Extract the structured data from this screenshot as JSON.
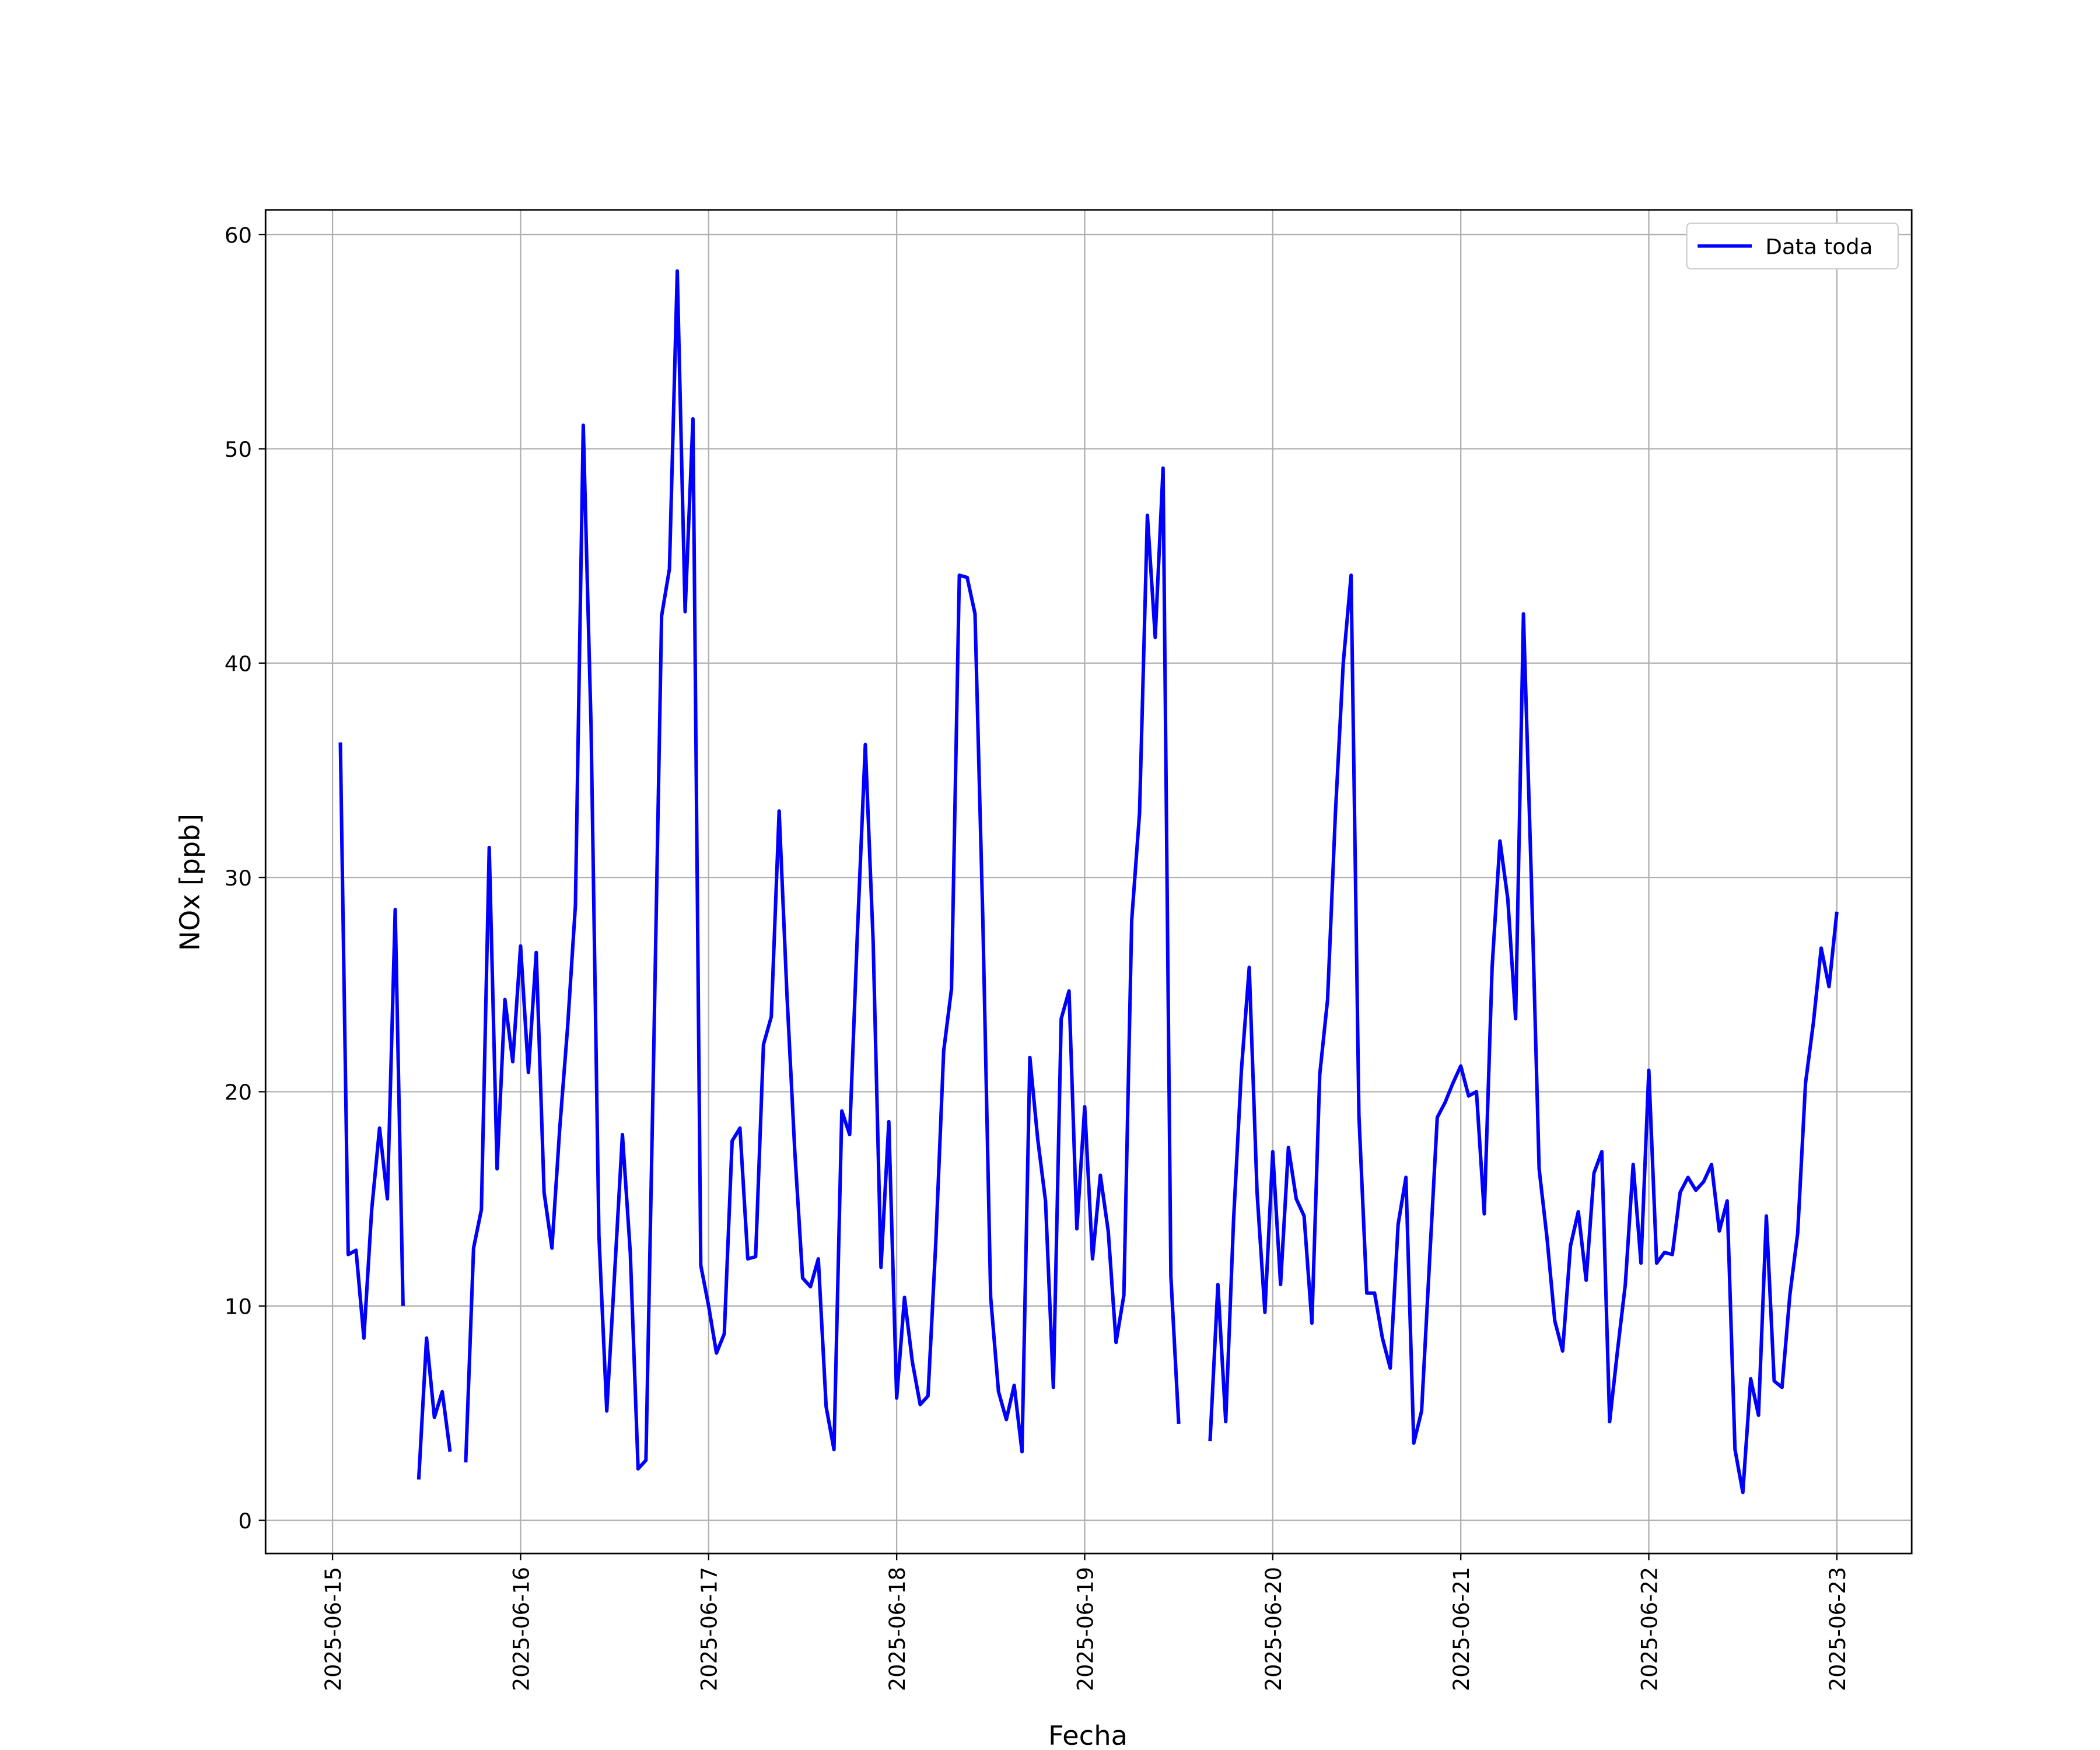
{
  "chart_data": {
    "type": "line",
    "xlabel": "Fecha",
    "ylabel": "NOx [ppb]",
    "x": [
      "2025-06-15 01:00",
      "2025-06-15 02:00",
      "2025-06-15 03:00",
      "2025-06-15 04:00",
      "2025-06-15 05:00",
      "2025-06-15 06:00",
      "2025-06-15 07:00",
      "2025-06-15 08:00",
      "2025-06-15 09:00",
      "2025-06-15 10:00",
      "2025-06-15 11:00",
      "2025-06-15 12:00",
      "2025-06-15 13:00",
      "2025-06-15 14:00",
      "2025-06-15 15:00",
      "2025-06-15 16:00",
      "2025-06-15 17:00",
      "2025-06-15 18:00",
      "2025-06-15 19:00",
      "2025-06-15 20:00",
      "2025-06-15 21:00",
      "2025-06-15 22:00",
      "2025-06-15 23:00",
      "2025-06-16 00:00",
      "2025-06-16 01:00",
      "2025-06-16 02:00",
      "2025-06-16 03:00",
      "2025-06-16 04:00",
      "2025-06-16 05:00",
      "2025-06-16 06:00",
      "2025-06-16 07:00",
      "2025-06-16 08:00",
      "2025-06-16 09:00",
      "2025-06-16 10:00",
      "2025-06-16 11:00",
      "2025-06-16 12:00",
      "2025-06-16 13:00",
      "2025-06-16 14:00",
      "2025-06-16 15:00",
      "2025-06-16 16:00",
      "2025-06-16 17:00",
      "2025-06-16 18:00",
      "2025-06-16 19:00",
      "2025-06-16 20:00",
      "2025-06-16 21:00",
      "2025-06-16 22:00",
      "2025-06-16 23:00",
      "2025-06-17 00:00",
      "2025-06-17 01:00",
      "2025-06-17 02:00",
      "2025-06-17 03:00",
      "2025-06-17 04:00",
      "2025-06-17 05:00",
      "2025-06-17 06:00",
      "2025-06-17 07:00",
      "2025-06-17 08:00",
      "2025-06-17 09:00",
      "2025-06-17 10:00",
      "2025-06-17 11:00",
      "2025-06-17 12:00",
      "2025-06-17 13:00",
      "2025-06-17 14:00",
      "2025-06-17 15:00",
      "2025-06-17 16:00",
      "2025-06-17 17:00",
      "2025-06-17 18:00",
      "2025-06-17 19:00",
      "2025-06-17 20:00",
      "2025-06-17 21:00",
      "2025-06-17 22:00",
      "2025-06-17 23:00",
      "2025-06-18 00:00",
      "2025-06-18 01:00",
      "2025-06-18 02:00",
      "2025-06-18 03:00",
      "2025-06-18 04:00",
      "2025-06-18 05:00",
      "2025-06-18 06:00",
      "2025-06-18 07:00",
      "2025-06-18 08:00",
      "2025-06-18 09:00",
      "2025-06-18 10:00",
      "2025-06-18 11:00",
      "2025-06-18 12:00",
      "2025-06-18 13:00",
      "2025-06-18 14:00",
      "2025-06-18 15:00",
      "2025-06-18 16:00",
      "2025-06-18 17:00",
      "2025-06-18 18:00",
      "2025-06-18 19:00",
      "2025-06-18 20:00",
      "2025-06-18 21:00",
      "2025-06-18 22:00",
      "2025-06-18 23:00",
      "2025-06-19 00:00",
      "2025-06-19 01:00",
      "2025-06-19 02:00",
      "2025-06-19 03:00",
      "2025-06-19 04:00",
      "2025-06-19 05:00",
      "2025-06-19 06:00",
      "2025-06-19 07:00",
      "2025-06-19 08:00",
      "2025-06-19 09:00",
      "2025-06-19 10:00",
      "2025-06-19 11:00",
      "2025-06-19 12:00",
      "2025-06-19 13:00",
      "2025-06-19 14:00",
      "2025-06-19 15:00",
      "2025-06-19 16:00",
      "2025-06-19 17:00",
      "2025-06-19 18:00",
      "2025-06-19 19:00",
      "2025-06-19 20:00",
      "2025-06-19 21:00",
      "2025-06-19 22:00",
      "2025-06-19 23:00",
      "2025-06-20 00:00",
      "2025-06-20 01:00",
      "2025-06-20 02:00",
      "2025-06-20 03:00",
      "2025-06-20 04:00",
      "2025-06-20 05:00",
      "2025-06-20 06:00",
      "2025-06-20 07:00",
      "2025-06-20 08:00",
      "2025-06-20 09:00",
      "2025-06-20 10:00",
      "2025-06-20 11:00",
      "2025-06-20 12:00",
      "2025-06-20 13:00",
      "2025-06-20 14:00",
      "2025-06-20 15:00",
      "2025-06-20 16:00",
      "2025-06-20 17:00",
      "2025-06-20 18:00",
      "2025-06-20 19:00",
      "2025-06-20 20:00",
      "2025-06-20 21:00",
      "2025-06-20 22:00",
      "2025-06-20 23:00",
      "2025-06-21 00:00",
      "2025-06-21 01:00",
      "2025-06-21 02:00",
      "2025-06-21 03:00",
      "2025-06-21 04:00",
      "2025-06-21 05:00",
      "2025-06-21 06:00",
      "2025-06-21 07:00",
      "2025-06-21 08:00",
      "2025-06-21 09:00",
      "2025-06-21 10:00",
      "2025-06-21 11:00",
      "2025-06-21 12:00",
      "2025-06-21 13:00",
      "2025-06-21 14:00",
      "2025-06-21 15:00",
      "2025-06-21 16:00",
      "2025-06-21 17:00",
      "2025-06-21 18:00",
      "2025-06-21 19:00",
      "2025-06-21 20:00",
      "2025-06-21 21:00",
      "2025-06-21 22:00",
      "2025-06-21 23:00",
      "2025-06-22 00:00",
      "2025-06-22 01:00",
      "2025-06-22 02:00",
      "2025-06-22 03:00",
      "2025-06-22 04:00",
      "2025-06-22 05:00",
      "2025-06-22 06:00",
      "2025-06-22 07:00",
      "2025-06-22 08:00",
      "2025-06-22 09:00",
      "2025-06-22 10:00",
      "2025-06-22 11:00",
      "2025-06-22 12:00",
      "2025-06-22 13:00",
      "2025-06-22 14:00",
      "2025-06-22 15:00",
      "2025-06-22 16:00",
      "2025-06-22 17:00",
      "2025-06-22 18:00",
      "2025-06-22 19:00",
      "2025-06-22 20:00",
      "2025-06-22 21:00",
      "2025-06-22 22:00",
      "2025-06-22 23:00",
      "2025-06-23 00:00"
    ],
    "series": [
      {
        "name": "Data toda",
        "color": "#0000ff",
        "values": [
          36.3,
          12.4,
          12.6,
          8.5,
          14.5,
          18.3,
          15.0,
          28.5,
          10.0,
          null,
          1.9,
          8.5,
          4.8,
          6.0,
          3.2,
          null,
          2.7,
          12.7,
          14.5,
          31.4,
          16.4,
          24.3,
          21.4,
          26.8,
          20.9,
          26.5,
          15.3,
          12.7,
          18.3,
          23.0,
          28.7,
          51.1,
          37.0,
          13.3,
          5.1,
          11.5,
          18.0,
          12.5,
          2.4,
          2.8,
          22.0,
          42.2,
          44.4,
          58.3,
          42.4,
          51.4,
          11.9,
          10.0,
          7.8,
          8.7,
          17.7,
          18.3,
          12.2,
          12.3,
          22.2,
          23.5,
          33.1,
          24.5,
          17.2,
          11.3,
          10.9,
          12.2,
          5.3,
          3.3,
          19.1,
          18.0,
          27.5,
          36.2,
          27.0,
          11.8,
          18.6,
          5.7,
          10.4,
          7.4,
          5.4,
          5.8,
          13.0,
          21.9,
          24.8,
          44.1,
          44.0,
          42.3,
          28.0,
          10.4,
          6.0,
          4.7,
          6.3,
          3.2,
          21.6,
          17.8,
          14.9,
          6.2,
          23.4,
          24.7,
          13.6,
          19.3,
          12.2,
          16.1,
          13.5,
          8.3,
          10.5,
          28.0,
          33.0,
          46.9,
          41.2,
          49.1,
          11.4,
          4.5,
          null,
          null,
          null,
          3.7,
          11.0,
          4.6,
          14.0,
          21.0,
          25.8,
          15.3,
          9.7,
          17.2,
          11.0,
          17.4,
          15.0,
          14.2,
          9.2,
          20.8,
          24.3,
          33.0,
          40.0,
          44.1,
          18.9,
          10.6,
          10.6,
          8.5,
          7.1,
          13.8,
          16.0,
          3.6,
          5.1,
          12.0,
          18.8,
          19.5,
          20.4,
          21.2,
          19.8,
          20.0,
          14.3,
          25.8,
          31.7,
          29.0,
          23.4,
          42.3,
          30.0,
          16.4,
          13.2,
          9.3,
          7.9,
          12.8,
          14.4,
          11.2,
          16.2,
          17.2,
          4.6,
          7.9,
          11.0,
          16.6,
          12.0,
          21.0,
          12.0,
          12.5,
          12.4,
          15.3,
          16.0,
          15.4,
          15.8,
          16.6,
          13.5,
          14.9,
          3.3,
          1.3,
          6.6,
          4.9,
          14.2,
          6.5,
          6.2,
          10.5,
          13.4,
          20.4,
          23.2,
          26.7,
          24.9,
          28.4
        ]
      }
    ],
    "xlim": [
      "2025-06-14 15:27",
      "2025-06-23 09:33"
    ],
    "xticks": [
      "2025-06-15",
      "2025-06-16",
      "2025-06-17",
      "2025-06-18",
      "2025-06-19",
      "2025-06-20",
      "2025-06-21",
      "2025-06-22",
      "2025-06-23"
    ],
    "ylim": [
      -1.55,
      61.15
    ],
    "yticks": [
      0,
      10,
      20,
      30,
      40,
      50,
      60
    ],
    "grid": true,
    "legend": "upper right"
  }
}
